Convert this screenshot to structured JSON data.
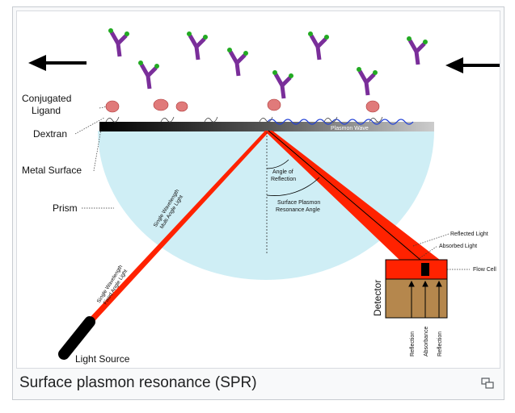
{
  "caption": "Surface plasmon resonance (SPR)",
  "colors": {
    "prism": "#cfeef5",
    "beam": "#ff2200",
    "metal": "#333333",
    "detector_body": "#b5874d",
    "antibody": "#7a2e9a"
  },
  "labels": {
    "conjugated_ligand_1": "Conjugated",
    "conjugated_ligand_2": "Ligand",
    "dextran": "Dextran",
    "metal_surface": "Metal Surface",
    "prism": "Prism",
    "light_source": "Light Source",
    "plasmon_wave": "Plasmon Wave",
    "angle_reflection_1": "Angle of",
    "angle_reflection_2": "Reflection",
    "spr_angle_1": "Surface Plasmon",
    "spr_angle_2": "Resonance Angle",
    "beam_multi_1": "Single Wavelength",
    "beam_multi_2": "Multi Angle Light",
    "beam_fixed_1": "Single Wavelength",
    "beam_fixed_2": "Fixed Angle Light",
    "reflected_light": "Reflected Light",
    "absorbed_light": "Absorbed Light",
    "flow_cell": "Flow Cell",
    "detector": "Detector",
    "reflection_left": "Reflection",
    "absorbance": "Absorbance",
    "reflection_right": "Reflection"
  },
  "icons": {
    "flow_left": "arrow-left-icon",
    "flow_right": "arrow-left-icon",
    "expand": "magnify-icon"
  }
}
